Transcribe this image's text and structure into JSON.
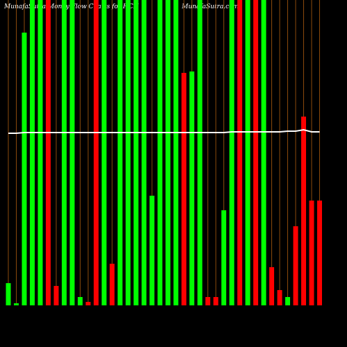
{
  "chart_data": {
    "type": "bar",
    "title": "MunafaSutra Money Flow Charts for HCN",
    "subtitle": "MunafaSutra.com",
    "categories": [
      null,
      null,
      null,
      null,
      null,
      null,
      null,
      null,
      null,
      null,
      null,
      null,
      null,
      null,
      null,
      null,
      null,
      null,
      null,
      null,
      null,
      null,
      null,
      null,
      null,
      null,
      null,
      null,
      null,
      null,
      null,
      null,
      null,
      null,
      null,
      null,
      null,
      null,
      null,
      null
    ],
    "values": [
      32,
      3,
      393,
      440,
      440,
      440,
      28,
      440,
      440,
      12,
      5,
      440,
      440,
      60,
      440,
      440,
      440,
      440,
      158,
      440,
      440,
      440,
      335,
      337,
      440,
      12,
      12,
      137,
      440,
      440,
      440,
      440,
      440,
      55,
      22,
      12,
      114,
      272,
      151,
      151
    ],
    "colors": [
      "#00ff00",
      "#00ff00",
      "#00ff00",
      "#00ff00",
      "#00ff00",
      "#ff0000",
      "#ff0000",
      "#00ff00",
      "#00ff00",
      "#00ff00",
      "#ff0000",
      "#ff0000",
      "#00ff00",
      "#ff0000",
      "#00ff00",
      "#00ff00",
      "#00ff00",
      "#00ff00",
      "#00ff00",
      "#00ff00",
      "#00ff00",
      "#00ff00",
      "#ff0000",
      "#00ff00",
      "#00ff00",
      "#ff0000",
      "#ff0000",
      "#00ff00",
      "#00ff00",
      "#ff0000",
      "#00ff00",
      "#ff0000",
      "#00ff00",
      "#ff0000",
      "#ff0000",
      "#00ff00",
      "#ff0000",
      "#ff0000",
      "#ff0000",
      "#ff0000"
    ],
    "line": {
      "color": "#ffffff",
      "values": [
        248,
        248,
        249,
        249,
        249,
        249,
        249,
        249,
        249,
        249,
        249,
        249,
        249,
        249,
        249,
        249,
        249,
        249,
        249,
        249,
        249,
        249,
        249,
        249,
        249,
        249,
        249,
        249,
        250,
        250,
        250,
        250,
        250,
        250,
        250,
        251,
        251,
        253,
        250,
        250
      ]
    },
    "separator_color": "#8b4a0c",
    "ylim": [
      0,
      440
    ]
  }
}
